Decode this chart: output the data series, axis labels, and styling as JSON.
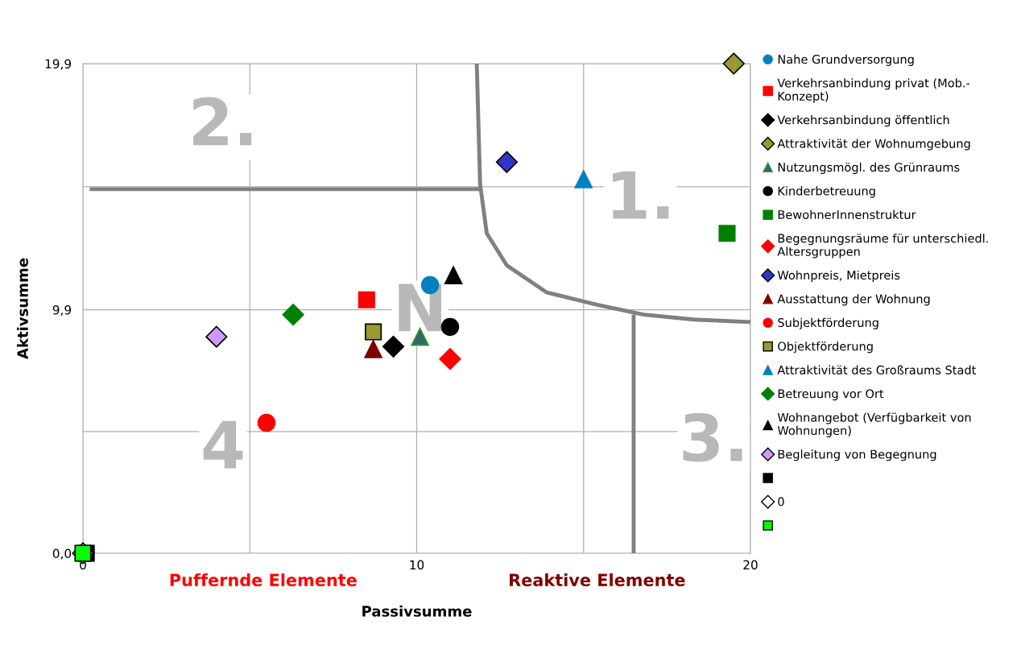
{
  "chart_data": {
    "type": "scatter",
    "xlabel": "Passivsumme",
    "ylabel": "Aktivsumme",
    "xlim": [
      0,
      20
    ],
    "ylim": [
      0,
      19.9
    ],
    "xticks": [
      0,
      {
        "value": 5,
        "label": null
      },
      10,
      {
        "value": 15,
        "label": null
      },
      20
    ],
    "yticks": [
      {
        "value": 0,
        "label": "0,0"
      },
      {
        "value": 4.95,
        "label": null
      },
      {
        "value": 9.9,
        "label": "9,9"
      },
      {
        "value": 14.9,
        "label": null
      },
      {
        "value": 19.9,
        "label": "19,9"
      }
    ],
    "grid": true,
    "legend": "right",
    "series": [
      {
        "name": "Nahe Grundversorgung",
        "color": "#0080c0",
        "marker": "circle",
        "x": [
          10.4
        ],
        "values": [
          10.9
        ]
      },
      {
        "name": "Verkehrsanbindung privat (Mob.-\nKonzept)",
        "color": "#ff0000",
        "marker": "square",
        "x": [
          8.5
        ],
        "values": [
          10.3
        ]
      },
      {
        "name": "Verkehrsanbindung öffentlich",
        "color": "#000000",
        "marker": "diamond",
        "x": [
          9.3
        ],
        "values": [
          8.4
        ]
      },
      {
        "name": "Attraktivität der Wohnumgebung",
        "color": "#999933",
        "marker": "diamond",
        "x": [
          19.5
        ],
        "values": [
          19.9
        ]
      },
      {
        "name": "Nutzungsmögl. des Grünraums",
        "color": "#336666",
        "marker": "triangle",
        "x": [
          10.1
        ],
        "values": [
          8.8
        ]
      },
      {
        "name": "Kinderbetreuung",
        "color": "#000000",
        "marker": "circle",
        "x": [
          11.0
        ],
        "values": [
          9.2
        ]
      },
      {
        "name": "BewohnerInnenstruktur",
        "color": "#008000",
        "marker": "square",
        "x": [
          19.3
        ],
        "values": [
          13.0
        ]
      },
      {
        "name": "Begegnungsräume für unterschiedl.\nAltersgruppen",
        "color": "#ff0000",
        "marker": "diamond",
        "x": [
          11.0
        ],
        "values": [
          7.9
        ]
      },
      {
        "name": "Wohnpreis, Mietpreis",
        "color": "#3333cc",
        "marker": "diamond",
        "x": [
          12.7
        ],
        "values": [
          15.9
        ]
      },
      {
        "name": "Ausstattung der Wohnung",
        "color": "#800000",
        "marker": "triangle",
        "x": [
          8.7
        ],
        "values": [
          8.3
        ]
      },
      {
        "name": "Subjektförderung",
        "color": "#ff0000",
        "marker": "circle",
        "x": [
          5.5
        ],
        "values": [
          5.3
        ]
      },
      {
        "name": "Objektförderung",
        "color": "#999933",
        "marker": "square",
        "x": [
          8.7
        ],
        "values": [
          9.0
        ]
      },
      {
        "name": "Attraktivität des Großraums Stadt",
        "color": "#0080c0",
        "marker": "triangle",
        "x": [
          15.0
        ],
        "values": [
          15.2
        ]
      },
      {
        "name": "Betreuung vor Ort",
        "color": "#008000",
        "marker": "diamond",
        "x": [
          6.3
        ],
        "values": [
          9.7
        ]
      },
      {
        "name": "Wohnangebot (Verfügbarkeit von\nWohnungen)",
        "color": "#000000",
        "marker": "triangle",
        "x": [
          11.1
        ],
        "values": [
          11.3
        ]
      },
      {
        "name": "Begleitung von Begegnung",
        "color": "#cc99ff",
        "marker": "diamond",
        "x": [
          4.0
        ],
        "values": [
          8.8
        ]
      },
      {
        "color": "#000000",
        "marker": "square",
        "x": [
          0.1
        ],
        "values": [
          0
        ]
      },
      {
        "name": "0",
        "color": "#ffffff",
        "marker": "diamond",
        "x": [
          0
        ],
        "values": [
          0
        ]
      },
      {
        "color": "#00ff00",
        "marker": "square",
        "x": [
          0
        ],
        "values": [
          0
        ]
      },
      {
        "type": "line",
        "color": "#808080",
        "marker": "none",
        "x": [
          0.2,
          11.9
        ],
        "values": [
          14.8,
          14.8
        ]
      },
      {
        "type": "line",
        "color": "#808080",
        "marker": "none",
        "x": [
          16.5,
          16.5
        ],
        "values": [
          9.7,
          0
        ]
      },
      {
        "type": "line",
        "color": "#808080",
        "marker": "none",
        "x": [
          11.8,
          11.9,
          12.1,
          12.7,
          13.9,
          15.4,
          16.8,
          18.3,
          20
        ],
        "values": [
          19.9,
          15.0,
          13.0,
          11.7,
          10.6,
          10.1,
          9.7,
          9.5,
          9.4
        ]
      }
    ],
    "annotations": [
      "1.",
      "2.",
      "3.",
      "4",
      "N",
      "Puffernde Elemente",
      "Reaktive Elemente"
    ]
  }
}
